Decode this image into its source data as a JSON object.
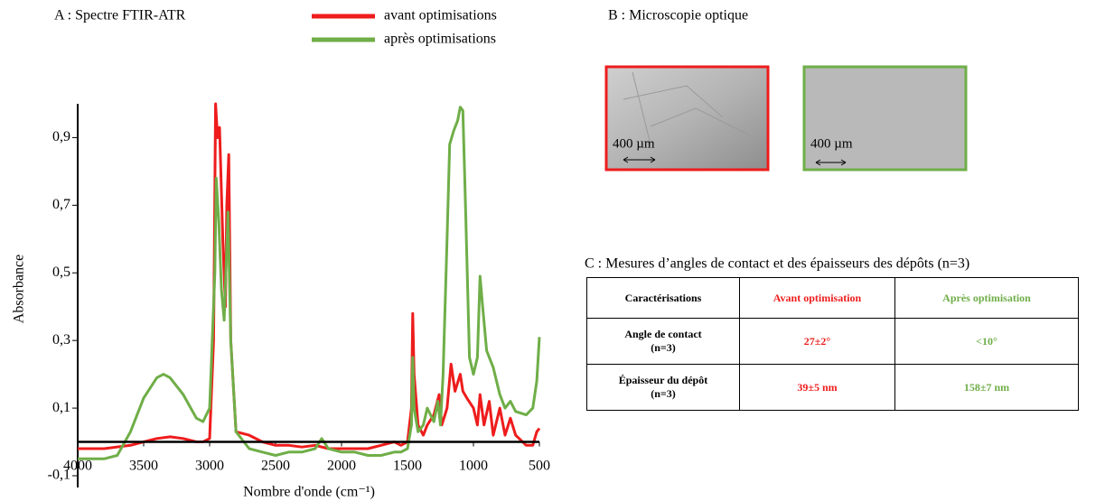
{
  "chart_data": {
    "type": "line",
    "title": "A : Spectre FTIR-ATR",
    "x_label": "Nombre d'onde (cm⁻¹)",
    "y_label": "Absorbance",
    "xlim": [
      4000,
      500
    ],
    "ylim": [
      -0.1,
      1.0
    ],
    "xticks": [
      4000,
      3500,
      3000,
      2500,
      2000,
      1500,
      1000,
      500
    ],
    "yticks": [
      {
        "value": -0.1,
        "label": "-0,1"
      },
      {
        "value": 0.1,
        "label": "0,1"
      },
      {
        "value": 0.3,
        "label": "0,3"
      },
      {
        "value": 0.5,
        "label": "0,5"
      },
      {
        "value": 0.7,
        "label": "0,7"
      },
      {
        "value": 0.9,
        "label": "0,9"
      }
    ],
    "series": [
      {
        "name": "avant optimisations",
        "color": "#ee1c1c",
        "x": [
          4000,
          3800,
          3600,
          3500,
          3400,
          3300,
          3200,
          3100,
          3050,
          3000,
          2970,
          2955,
          2940,
          2925,
          2900,
          2880,
          2870,
          2855,
          2840,
          2800,
          2700,
          2600,
          2500,
          2400,
          2300,
          2200,
          2100,
          2000,
          1900,
          1800,
          1700,
          1600,
          1550,
          1500,
          1470,
          1460,
          1450,
          1420,
          1380,
          1350,
          1300,
          1260,
          1240,
          1200,
          1170,
          1140,
          1100,
          1080,
          1050,
          1000,
          970,
          950,
          920,
          880,
          850,
          800,
          760,
          720,
          680,
          600,
          550,
          520,
          500
        ],
        "values": [
          -0.02,
          -0.02,
          -0.01,
          0.0,
          0.01,
          0.015,
          0.01,
          0.0,
          0.0,
          0.01,
          0.3,
          1.0,
          0.9,
          0.93,
          0.6,
          0.4,
          0.7,
          0.85,
          0.3,
          0.03,
          0.02,
          0.0,
          -0.01,
          -0.01,
          -0.015,
          -0.01,
          -0.02,
          -0.02,
          -0.02,
          -0.02,
          -0.01,
          0.0,
          -0.01,
          0.0,
          0.1,
          0.38,
          0.2,
          0.05,
          0.02,
          0.05,
          0.08,
          0.14,
          0.05,
          0.1,
          0.23,
          0.15,
          0.2,
          0.15,
          0.13,
          0.1,
          0.05,
          0.14,
          0.05,
          0.12,
          0.02,
          0.1,
          0.02,
          0.07,
          0.02,
          -0.01,
          -0.01,
          0.03,
          0.04
        ]
      },
      {
        "name": "après optimisations",
        "color": "#6fae48",
        "x": [
          4000,
          3800,
          3700,
          3600,
          3500,
          3400,
          3350,
          3300,
          3200,
          3100,
          3050,
          3000,
          2960,
          2950,
          2930,
          2910,
          2890,
          2860,
          2840,
          2800,
          2700,
          2600,
          2500,
          2400,
          2300,
          2200,
          2150,
          2100,
          2000,
          1900,
          1800,
          1700,
          1600,
          1550,
          1500,
          1470,
          1460,
          1450,
          1420,
          1380,
          1350,
          1300,
          1270,
          1250,
          1230,
          1200,
          1180,
          1150,
          1120,
          1100,
          1080,
          1060,
          1030,
          1000,
          970,
          950,
          930,
          900,
          850,
          800,
          760,
          720,
          680,
          600,
          550,
          520,
          500
        ],
        "values": [
          -0.05,
          -0.05,
          -0.04,
          0.03,
          0.13,
          0.19,
          0.2,
          0.19,
          0.14,
          0.07,
          0.06,
          0.1,
          0.5,
          0.78,
          0.65,
          0.45,
          0.36,
          0.68,
          0.3,
          0.03,
          -0.02,
          -0.03,
          -0.04,
          -0.03,
          -0.03,
          -0.02,
          0.01,
          -0.02,
          -0.03,
          -0.03,
          -0.04,
          -0.04,
          -0.03,
          -0.03,
          -0.02,
          0.05,
          0.25,
          0.1,
          0.03,
          0.05,
          0.1,
          0.06,
          0.12,
          0.05,
          0.2,
          0.6,
          0.88,
          0.92,
          0.95,
          0.99,
          0.98,
          0.7,
          0.25,
          0.2,
          0.25,
          0.49,
          0.4,
          0.27,
          0.22,
          0.14,
          0.1,
          0.12,
          0.09,
          0.08,
          0.1,
          0.18,
          0.31
        ]
      }
    ]
  },
  "microscopy": {
    "title": "B : Microscopie optique",
    "images": [
      {
        "scale": "400 µm"
      },
      {
        "scale": "400 µm"
      }
    ]
  },
  "table": {
    "title": "C : Mesures d’angles de contact et des épaisseurs des dépôts (n=3)",
    "header": [
      "Caractérisations",
      "Avant optimisation",
      "Après optimisation"
    ],
    "rows": [
      [
        "Angle de contact\n(n=3)",
        "27±2°",
        "<10°"
      ],
      [
        "Épaisseur du dépôt\n(n=3)",
        "39±5 nm",
        "158±7 nm"
      ]
    ]
  }
}
